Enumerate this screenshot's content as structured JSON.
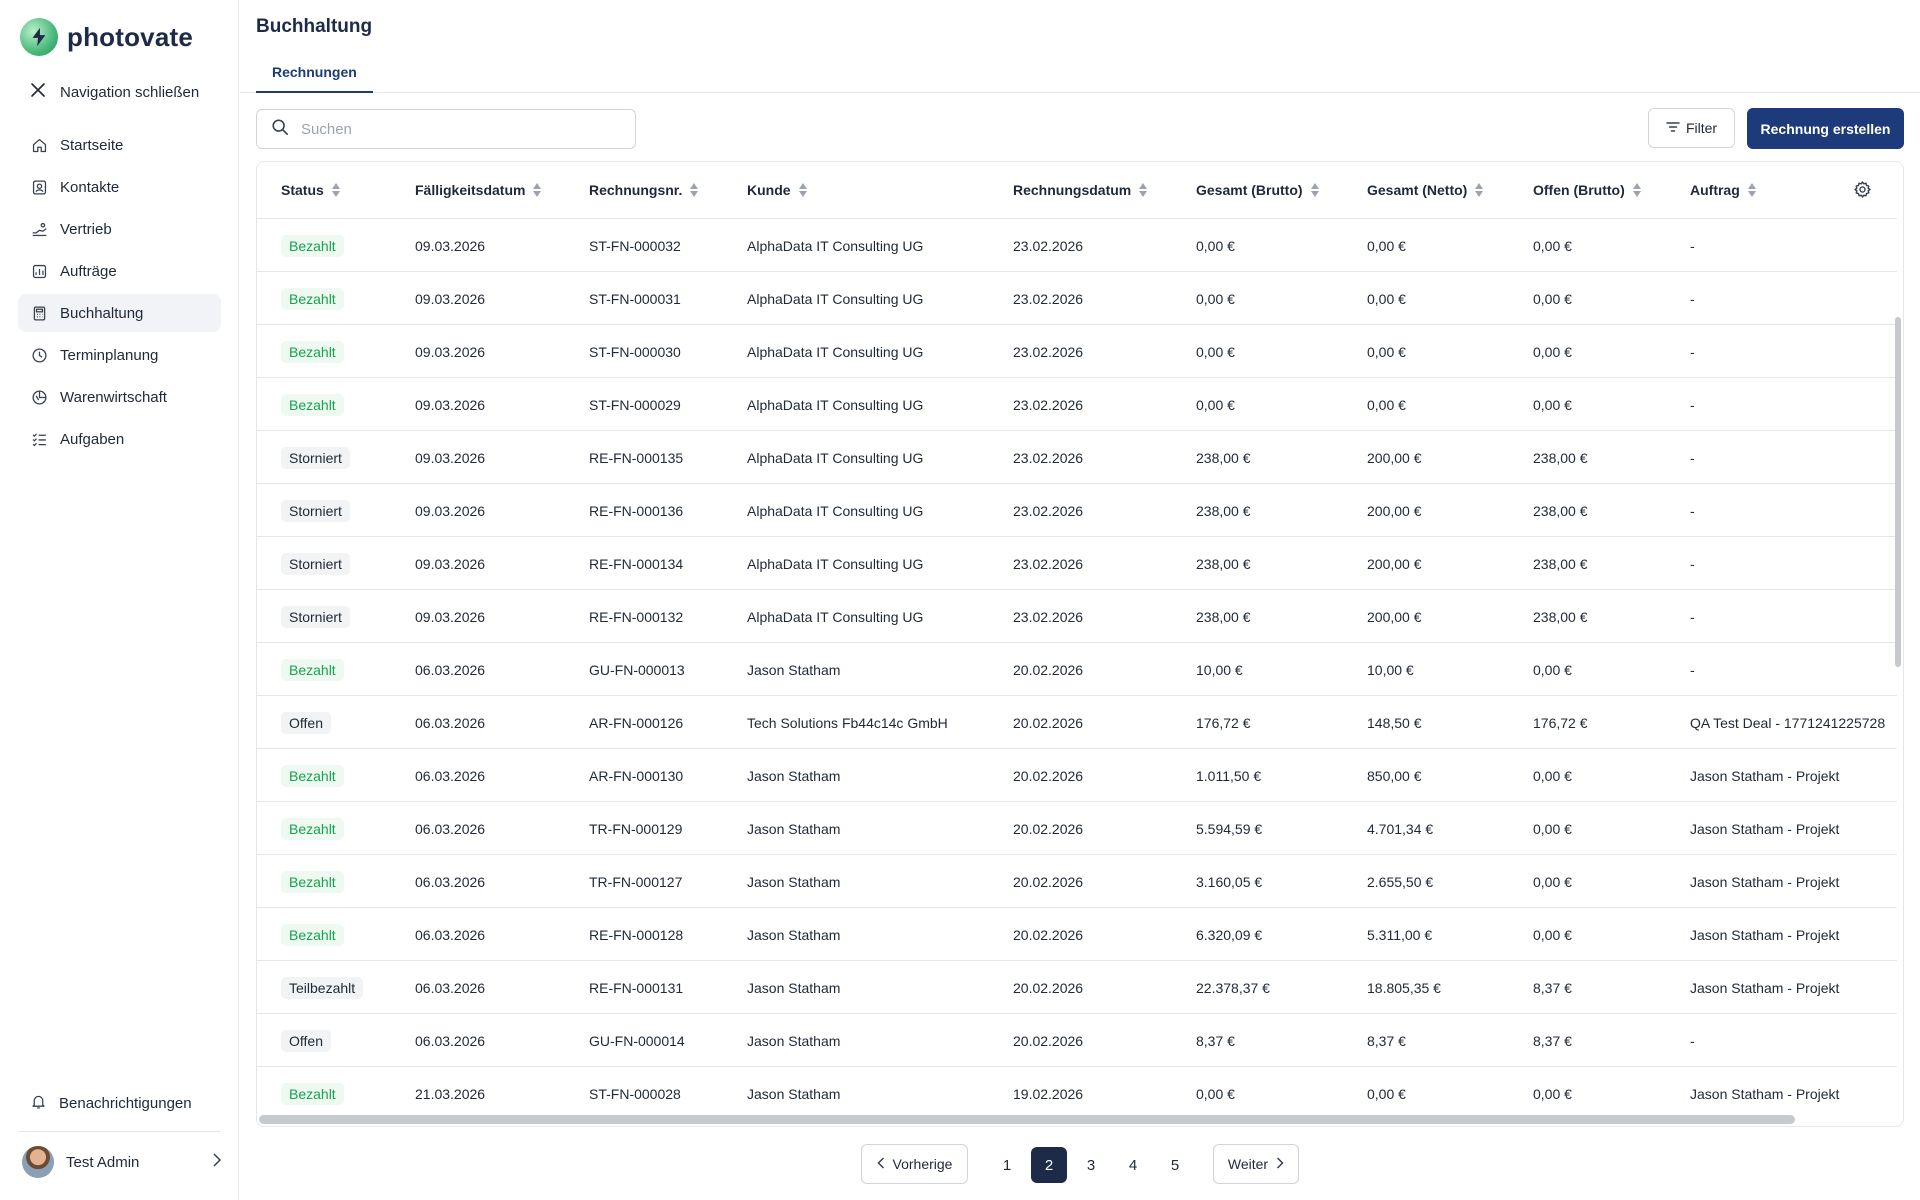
{
  "app": {
    "name": "photovate"
  },
  "sidebar": {
    "close_label": "Navigation schließen",
    "items": [
      {
        "label": "Startseite",
        "icon": "home-icon"
      },
      {
        "label": "Kontakte",
        "icon": "contacts-icon"
      },
      {
        "label": "Vertrieb",
        "icon": "sales-icon"
      },
      {
        "label": "Aufträge",
        "icon": "orders-icon"
      },
      {
        "label": "Buchhaltung",
        "icon": "accounting-icon",
        "active": true
      },
      {
        "label": "Terminplanung",
        "icon": "clock-icon"
      },
      {
        "label": "Warenwirtschaft",
        "icon": "inventory-icon"
      },
      {
        "label": "Aufgaben",
        "icon": "tasks-icon"
      }
    ],
    "notifications_label": "Benachrichtigungen",
    "user_name": "Test Admin"
  },
  "page": {
    "title": "Buchhaltung",
    "tab": "Rechnungen",
    "search_placeholder": "Suchen",
    "filter_label": "Filter",
    "create_label": "Rechnung erstellen"
  },
  "table": {
    "columns": [
      "Status",
      "Fälligkeitsdatum",
      "Rechnungsnr.",
      "Kunde",
      "Rechnungsdatum",
      "Gesamt (Brutto)",
      "Gesamt (Netto)",
      "Offen (Brutto)",
      "Auftrag"
    ],
    "rows": [
      [
        "Bezahlt",
        "09.03.2026",
        "ST-FN-000032",
        "AlphaData IT Consulting UG",
        "23.02.2026",
        "0,00 €",
        "0,00 €",
        "0,00 €",
        "-"
      ],
      [
        "Bezahlt",
        "09.03.2026",
        "ST-FN-000031",
        "AlphaData IT Consulting UG",
        "23.02.2026",
        "0,00 €",
        "0,00 €",
        "0,00 €",
        "-"
      ],
      [
        "Bezahlt",
        "09.03.2026",
        "ST-FN-000030",
        "AlphaData IT Consulting UG",
        "23.02.2026",
        "0,00 €",
        "0,00 €",
        "0,00 €",
        "-"
      ],
      [
        "Bezahlt",
        "09.03.2026",
        "ST-FN-000029",
        "AlphaData IT Consulting UG",
        "23.02.2026",
        "0,00 €",
        "0,00 €",
        "0,00 €",
        "-"
      ],
      [
        "Storniert",
        "09.03.2026",
        "RE-FN-000135",
        "AlphaData IT Consulting UG",
        "23.02.2026",
        "238,00 €",
        "200,00 €",
        "238,00 €",
        "-"
      ],
      [
        "Storniert",
        "09.03.2026",
        "RE-FN-000136",
        "AlphaData IT Consulting UG",
        "23.02.2026",
        "238,00 €",
        "200,00 €",
        "238,00 €",
        "-"
      ],
      [
        "Storniert",
        "09.03.2026",
        "RE-FN-000134",
        "AlphaData IT Consulting UG",
        "23.02.2026",
        "238,00 €",
        "200,00 €",
        "238,00 €",
        "-"
      ],
      [
        "Storniert",
        "09.03.2026",
        "RE-FN-000132",
        "AlphaData IT Consulting UG",
        "23.02.2026",
        "238,00 €",
        "200,00 €",
        "238,00 €",
        "-"
      ],
      [
        "Bezahlt",
        "06.03.2026",
        "GU-FN-000013",
        "Jason Statham",
        "20.02.2026",
        "10,00 €",
        "10,00 €",
        "0,00 €",
        "-"
      ],
      [
        "Offen",
        "06.03.2026",
        "AR-FN-000126",
        "Tech Solutions Fb44c14c GmbH",
        "20.02.2026",
        "176,72 €",
        "148,50 €",
        "176,72 €",
        "QA Test Deal - 1771241225728"
      ],
      [
        "Bezahlt",
        "06.03.2026",
        "AR-FN-000130",
        "Jason Statham",
        "20.02.2026",
        "1.011,50 €",
        "850,00 €",
        "0,00 €",
        "Jason Statham - Projekt"
      ],
      [
        "Bezahlt",
        "06.03.2026",
        "TR-FN-000129",
        "Jason Statham",
        "20.02.2026",
        "5.594,59 €",
        "4.701,34 €",
        "0,00 €",
        "Jason Statham - Projekt"
      ],
      [
        "Bezahlt",
        "06.03.2026",
        "TR-FN-000127",
        "Jason Statham",
        "20.02.2026",
        "3.160,05 €",
        "2.655,50 €",
        "0,00 €",
        "Jason Statham - Projekt"
      ],
      [
        "Bezahlt",
        "06.03.2026",
        "RE-FN-000128",
        "Jason Statham",
        "20.02.2026",
        "6.320,09 €",
        "5.311,00 €",
        "0,00 €",
        "Jason Statham - Projekt"
      ],
      [
        "Teilbezahlt",
        "06.03.2026",
        "RE-FN-000131",
        "Jason Statham",
        "20.02.2026",
        "22.378,37 €",
        "18.805,35 €",
        "8,37 €",
        "Jason Statham - Projekt"
      ],
      [
        "Offen",
        "06.03.2026",
        "GU-FN-000014",
        "Jason Statham",
        "20.02.2026",
        "8,37 €",
        "8,37 €",
        "8,37 €",
        "-"
      ],
      [
        "Bezahlt",
        "21.03.2026",
        "ST-FN-000028",
        "Jason Statham",
        "19.02.2026",
        "0,00 €",
        "0,00 €",
        "0,00 €",
        "Jason Statham - Projekt"
      ]
    ]
  },
  "pagination": {
    "prev_label": "Vorherige",
    "next_label": "Weiter",
    "pages": [
      "1",
      "2",
      "3",
      "4",
      "5"
    ],
    "current": "2"
  },
  "colors": {
    "primary": "#1d3a7a",
    "paid_text": "#16a34a",
    "paid_bg": "#eefaf1",
    "neutral_bg": "#f1f3f5"
  }
}
